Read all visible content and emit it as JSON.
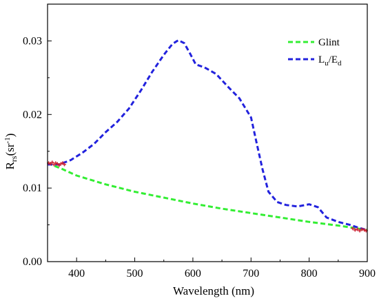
{
  "chart_data": {
    "type": "line",
    "xlabel": "Wavelength (nm)",
    "ylabel": {
      "base": "R",
      "sub": "rs",
      "paren_open": "(sr",
      "sup": "-1",
      "paren_close": ")"
    },
    "xlim": [
      350,
      900
    ],
    "ylim": [
      0,
      0.035
    ],
    "xticks": [
      400,
      500,
      600,
      700,
      800,
      900
    ],
    "yticks": [
      0.0,
      0.01,
      0.02,
      0.03
    ],
    "ytick_labels": [
      "0.00",
      "0.01",
      "0.02",
      "0.03"
    ],
    "xtick_labels": [
      "400",
      "500",
      "600",
      "700",
      "800",
      "900"
    ],
    "grid": false,
    "legend_position": "top-right",
    "series": [
      {
        "name": "Glint",
        "legend": {
          "base": "Glint"
        },
        "color": "#33ee33",
        "style": "dashed",
        "x": [
          350,
          375,
          400,
          450,
          500,
          550,
          600,
          650,
          700,
          750,
          800,
          850,
          875,
          900
        ],
        "y": [
          0.0134,
          0.0126,
          0.0117,
          0.0105,
          0.0095,
          0.0087,
          0.0079,
          0.0072,
          0.0066,
          0.006,
          0.0054,
          0.0049,
          0.0046,
          0.0043
        ]
      },
      {
        "name": "Lu/Ed",
        "legend": {
          "base": "L",
          "sub1": "u",
          "mid": "/E",
          "sub2": "d"
        },
        "color": "#2222dd",
        "style": "dashed",
        "x": [
          350,
          370,
          390,
          410,
          430,
          450,
          470,
          490,
          510,
          530,
          550,
          565,
          575,
          585,
          595,
          605,
          620,
          640,
          660,
          680,
          700,
          710,
          720,
          730,
          745,
          760,
          780,
          800,
          815,
          830,
          850,
          870,
          885,
          900
        ],
        "y": [
          0.0132,
          0.0132,
          0.0138,
          0.0148,
          0.016,
          0.0176,
          0.019,
          0.0208,
          0.0232,
          0.0258,
          0.0281,
          0.0296,
          0.0301,
          0.0297,
          0.0283,
          0.0268,
          0.0264,
          0.0255,
          0.0238,
          0.0222,
          0.0196,
          0.016,
          0.0125,
          0.0095,
          0.0081,
          0.0077,
          0.0075,
          0.0078,
          0.0074,
          0.006,
          0.0054,
          0.005,
          0.0046,
          0.0043
        ]
      }
    ],
    "markers": {
      "color": "#cc2233",
      "points": [
        [
          352,
          0.0134
        ],
        [
          355,
          0.0133
        ],
        [
          358,
          0.0135
        ],
        [
          361,
          0.0132
        ],
        [
          364,
          0.0134
        ],
        [
          367,
          0.0133
        ],
        [
          370,
          0.0131
        ],
        [
          373,
          0.0133
        ],
        [
          376,
          0.0134
        ],
        [
          379,
          0.0132
        ],
        [
          875,
          0.0045
        ],
        [
          879,
          0.0043
        ],
        [
          883,
          0.0044
        ],
        [
          887,
          0.0042
        ],
        [
          891,
          0.0044
        ],
        [
          895,
          0.0043
        ],
        [
          898,
          0.0042
        ]
      ]
    }
  }
}
